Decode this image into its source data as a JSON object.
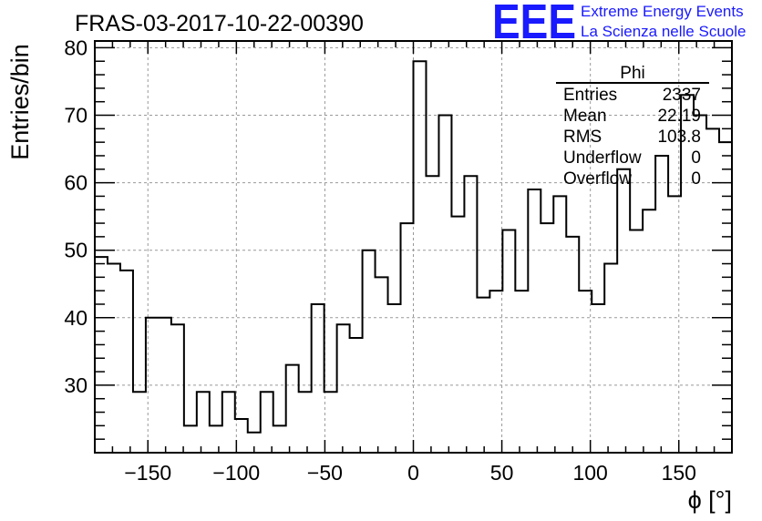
{
  "chart_data": {
    "type": "bar",
    "title": "FRAS-03-2017-10-22-00390",
    "xlabel": "ϕ [°]",
    "ylabel": "Entries/bin",
    "xlim": [
      -180,
      180
    ],
    "ylim": [
      20,
      81
    ],
    "x_ticks": [
      -150,
      -100,
      -50,
      0,
      50,
      100,
      150
    ],
    "y_ticks": [
      30,
      40,
      50,
      60,
      70,
      80
    ],
    "grid": true,
    "bin_width": 7.2,
    "bin_start": -180,
    "values": [
      49,
      48,
      47,
      29,
      40,
      40,
      39,
      24,
      29,
      24,
      29,
      25,
      23,
      29,
      24,
      33,
      29,
      42,
      29,
      39,
      37,
      50,
      46,
      42,
      54,
      78,
      61,
      70,
      55,
      61,
      43,
      44,
      53,
      44,
      59,
      54,
      58,
      52,
      44,
      42,
      48,
      62,
      53,
      56,
      64,
      58,
      73,
      70,
      68,
      66
    ],
    "legend": {
      "position": "top-right",
      "title": "Phi",
      "entries": [
        {
          "label": "Entries",
          "value": "2337"
        },
        {
          "label": "Mean",
          "value": "22.19"
        },
        {
          "label": "RMS",
          "value": "103.8"
        },
        {
          "label": "Underflow",
          "value": "0"
        },
        {
          "label": "Overflow",
          "value": "0"
        }
      ]
    },
    "colors": {
      "line": "#000000",
      "grid": "#999999",
      "logo": "#1a1aff"
    }
  },
  "logo": {
    "text": "EEE",
    "line1": "Extreme Energy Events",
    "line2": "La Scienza nelle Scuole"
  }
}
